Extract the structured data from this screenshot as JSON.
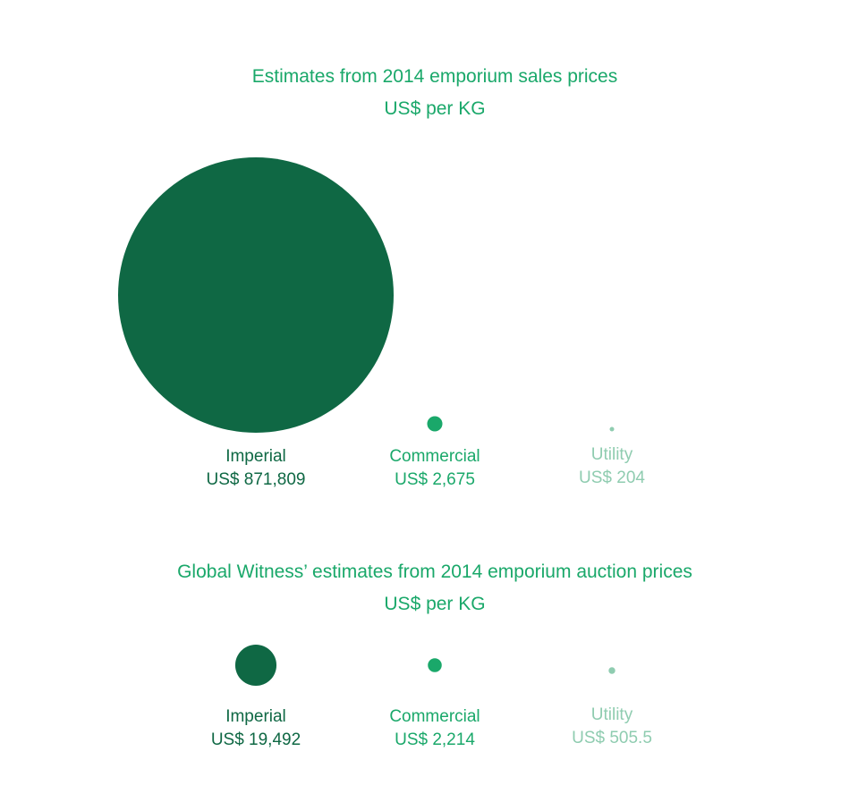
{
  "chart_data": [
    {
      "type": "bubble",
      "title": "Estimates from 2014 emporium sales prices",
      "subtitle": "US$ per KG",
      "categories": [
        "Imperial",
        "Commercial",
        "Utility"
      ],
      "values": [
        871809,
        2675,
        204
      ],
      "value_labels": [
        "US$ 871,809",
        "US$ 2,675",
        "US$ 204"
      ],
      "colors": [
        "#0f6844",
        "#1aa86a",
        "#8fccb0"
      ],
      "title_color": "#1aa86a",
      "legend": "none",
      "grid": false
    },
    {
      "type": "bubble",
      "title": "Global Witness’ estimates from 2014 emporium auction prices",
      "subtitle": "US$ per KG",
      "categories": [
        "Imperial",
        "Commercial",
        "Utility"
      ],
      "values": [
        19492,
        2214,
        505.5
      ],
      "value_labels": [
        "US$ 19,492",
        "US$ 2,214",
        "US$ 505.5"
      ],
      "colors": [
        "#0f6844",
        "#1aa86a",
        "#8fccb0"
      ],
      "title_color": "#1aa86a",
      "legend": "none",
      "grid": false
    }
  ]
}
